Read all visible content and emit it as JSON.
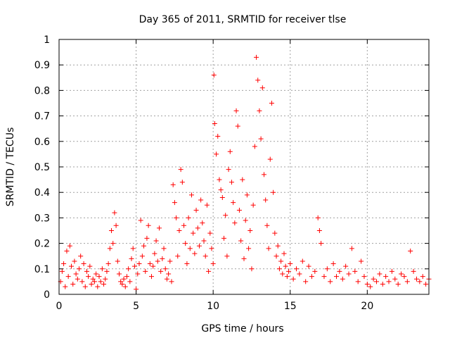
{
  "chart_data": {
    "type": "scatter",
    "title": "Day 365 of 2011, SRMTID for receiver tlse",
    "xlabel": "GPS time / hours",
    "ylabel": "SRMTID / TECUs",
    "xlim": [
      0,
      24
    ],
    "ylim": [
      0,
      1
    ],
    "x_ticks": [
      0,
      5,
      10,
      15,
      20
    ],
    "x_tick_labels": [
      "0",
      "5",
      "10",
      "15",
      "20"
    ],
    "y_ticks": [
      0,
      0.1,
      0.2,
      0.3,
      0.4,
      0.5,
      0.6,
      0.7,
      0.8,
      0.9,
      1
    ],
    "y_tick_labels": [
      "0",
      "0.1",
      "0.2",
      "0.3",
      "0.4",
      "0.5",
      "0.6",
      "0.7",
      "0.8",
      "0.9",
      "1"
    ],
    "grid": true,
    "marker": "plus",
    "marker_color": "#ff0000",
    "series": [
      {
        "name": "SRMTID",
        "points": [
          [
            0.1,
            0.05
          ],
          [
            0.2,
            0.09
          ],
          [
            0.3,
            0.12
          ],
          [
            0.4,
            0.03
          ],
          [
            0.5,
            0.17
          ],
          [
            0.6,
            0.07
          ],
          [
            0.7,
            0.19
          ],
          [
            0.8,
            0.11
          ],
          [
            0.9,
            0.04
          ],
          [
            1.0,
            0.13
          ],
          [
            1.1,
            0.08
          ],
          [
            1.2,
            0.06
          ],
          [
            1.3,
            0.1
          ],
          [
            1.4,
            0.15
          ],
          [
            1.5,
            0.05
          ],
          [
            1.6,
            0.12
          ],
          [
            1.7,
            0.03
          ],
          [
            1.8,
            0.09
          ],
          [
            1.9,
            0.07
          ],
          [
            2.0,
            0.11
          ],
          [
            2.1,
            0.04
          ],
          [
            2.2,
            0.06
          ],
          [
            2.3,
            0.05
          ],
          [
            2.4,
            0.08
          ],
          [
            2.5,
            0.03
          ],
          [
            2.6,
            0.07
          ],
          [
            2.7,
            0.05
          ],
          [
            2.8,
            0.1
          ],
          [
            2.9,
            0.04
          ],
          [
            3.0,
            0.06
          ],
          [
            3.1,
            0.09
          ],
          [
            3.2,
            0.12
          ],
          [
            3.3,
            0.18
          ],
          [
            3.4,
            0.25
          ],
          [
            3.5,
            0.2
          ],
          [
            3.6,
            0.32
          ],
          [
            3.7,
            0.27
          ],
          [
            3.8,
            0.13
          ],
          [
            3.9,
            0.08
          ],
          [
            4.0,
            0.05
          ],
          [
            4.1,
            0.04
          ],
          [
            4.2,
            0.06
          ],
          [
            4.3,
            0.03
          ],
          [
            4.4,
            0.07
          ],
          [
            4.5,
            0.1
          ],
          [
            4.6,
            0.05
          ],
          [
            4.7,
            0.14
          ],
          [
            4.8,
            0.18
          ],
          [
            4.9,
            0.11
          ],
          [
            5.0,
            0.02
          ],
          [
            5.1,
            0.08
          ],
          [
            5.2,
            0.12
          ],
          [
            5.3,
            0.29
          ],
          [
            5.4,
            0.15
          ],
          [
            5.5,
            0.19
          ],
          [
            5.6,
            0.09
          ],
          [
            5.7,
            0.22
          ],
          [
            5.8,
            0.27
          ],
          [
            5.9,
            0.12
          ],
          [
            6.0,
            0.07
          ],
          [
            6.1,
            0.11
          ],
          [
            6.2,
            0.16
          ],
          [
            6.3,
            0.21
          ],
          [
            6.4,
            0.13
          ],
          [
            6.5,
            0.26
          ],
          [
            6.6,
            0.09
          ],
          [
            6.7,
            0.14
          ],
          [
            6.8,
            0.18
          ],
          [
            6.9,
            0.1
          ],
          [
            7.0,
            0.06
          ],
          [
            7.1,
            0.08
          ],
          [
            7.2,
            0.13
          ],
          [
            7.3,
            0.05
          ],
          [
            7.4,
            0.43
          ],
          [
            7.5,
            0.36
          ],
          [
            7.6,
            0.3
          ],
          [
            7.7,
            0.15
          ],
          [
            7.8,
            0.25
          ],
          [
            7.9,
            0.49
          ],
          [
            8.0,
            0.44
          ],
          [
            8.1,
            0.27
          ],
          [
            8.2,
            0.2
          ],
          [
            8.3,
            0.12
          ],
          [
            8.4,
            0.3
          ],
          [
            8.5,
            0.18
          ],
          [
            8.6,
            0.39
          ],
          [
            8.7,
            0.24
          ],
          [
            8.8,
            0.16
          ],
          [
            8.9,
            0.33
          ],
          [
            9.0,
            0.26
          ],
          [
            9.1,
            0.19
          ],
          [
            9.2,
            0.37
          ],
          [
            9.3,
            0.28
          ],
          [
            9.4,
            0.21
          ],
          [
            9.5,
            0.15
          ],
          [
            9.6,
            0.35
          ],
          [
            9.7,
            0.09
          ],
          [
            9.8,
            0.24
          ],
          [
            9.9,
            0.18
          ],
          [
            10.0,
            0.12
          ],
          [
            10.05,
            0.86
          ],
          [
            10.1,
            0.67
          ],
          [
            10.2,
            0.55
          ],
          [
            10.3,
            0.62
          ],
          [
            10.4,
            0.45
          ],
          [
            10.5,
            0.41
          ],
          [
            10.6,
            0.38
          ],
          [
            10.7,
            0.22
          ],
          [
            10.8,
            0.31
          ],
          [
            10.9,
            0.15
          ],
          [
            11.0,
            0.49
          ],
          [
            11.1,
            0.56
          ],
          [
            11.2,
            0.44
          ],
          [
            11.3,
            0.36
          ],
          [
            11.4,
            0.28
          ],
          [
            11.5,
            0.72
          ],
          [
            11.6,
            0.66
          ],
          [
            11.7,
            0.33
          ],
          [
            11.8,
            0.21
          ],
          [
            11.9,
            0.45
          ],
          [
            12.0,
            0.14
          ],
          [
            12.1,
            0.29
          ],
          [
            12.2,
            0.39
          ],
          [
            12.3,
            0.18
          ],
          [
            12.4,
            0.25
          ],
          [
            12.5,
            0.1
          ],
          [
            12.6,
            0.35
          ],
          [
            12.7,
            0.58
          ],
          [
            12.8,
            0.93
          ],
          [
            12.9,
            0.84
          ],
          [
            13.0,
            0.72
          ],
          [
            13.1,
            0.61
          ],
          [
            13.2,
            0.81
          ],
          [
            13.3,
            0.47
          ],
          [
            13.4,
            0.37
          ],
          [
            13.5,
            0.27
          ],
          [
            13.6,
            0.18
          ],
          [
            13.7,
            0.53
          ],
          [
            13.8,
            0.75
          ],
          [
            13.9,
            0.4
          ],
          [
            14.0,
            0.24
          ],
          [
            14.1,
            0.15
          ],
          [
            14.2,
            0.19
          ],
          [
            14.3,
            0.1
          ],
          [
            14.4,
            0.13
          ],
          [
            14.5,
            0.08
          ],
          [
            14.6,
            0.16
          ],
          [
            14.7,
            0.11
          ],
          [
            14.8,
            0.07
          ],
          [
            14.9,
            0.09
          ],
          [
            15.0,
            0.12
          ],
          [
            15.2,
            0.06
          ],
          [
            15.4,
            0.1
          ],
          [
            15.6,
            0.08
          ],
          [
            15.8,
            0.13
          ],
          [
            16.0,
            0.05
          ],
          [
            16.2,
            0.11
          ],
          [
            16.4,
            0.07
          ],
          [
            16.6,
            0.09
          ],
          [
            16.8,
            0.3
          ],
          [
            16.9,
            0.25
          ],
          [
            17.0,
            0.2
          ],
          [
            17.2,
            0.07
          ],
          [
            17.4,
            0.1
          ],
          [
            17.6,
            0.05
          ],
          [
            17.8,
            0.12
          ],
          [
            18.0,
            0.07
          ],
          [
            18.2,
            0.09
          ],
          [
            18.4,
            0.06
          ],
          [
            18.6,
            0.11
          ],
          [
            18.8,
            0.08
          ],
          [
            19.0,
            0.18
          ],
          [
            19.2,
            0.09
          ],
          [
            19.4,
            0.05
          ],
          [
            19.6,
            0.13
          ],
          [
            19.8,
            0.07
          ],
          [
            20.0,
            0.04
          ],
          [
            20.2,
            0.03
          ],
          [
            20.4,
            0.06
          ],
          [
            20.6,
            0.05
          ],
          [
            20.8,
            0.08
          ],
          [
            21.0,
            0.04
          ],
          [
            21.2,
            0.07
          ],
          [
            21.4,
            0.05
          ],
          [
            21.6,
            0.09
          ],
          [
            21.8,
            0.06
          ],
          [
            22.0,
            0.04
          ],
          [
            22.2,
            0.08
          ],
          [
            22.4,
            0.07
          ],
          [
            22.6,
            0.05
          ],
          [
            22.8,
            0.17
          ],
          [
            23.0,
            0.09
          ],
          [
            23.2,
            0.06
          ],
          [
            23.4,
            0.05
          ],
          [
            23.6,
            0.07
          ],
          [
            23.8,
            0.04
          ],
          [
            24.0,
            0.06
          ]
        ]
      }
    ]
  }
}
